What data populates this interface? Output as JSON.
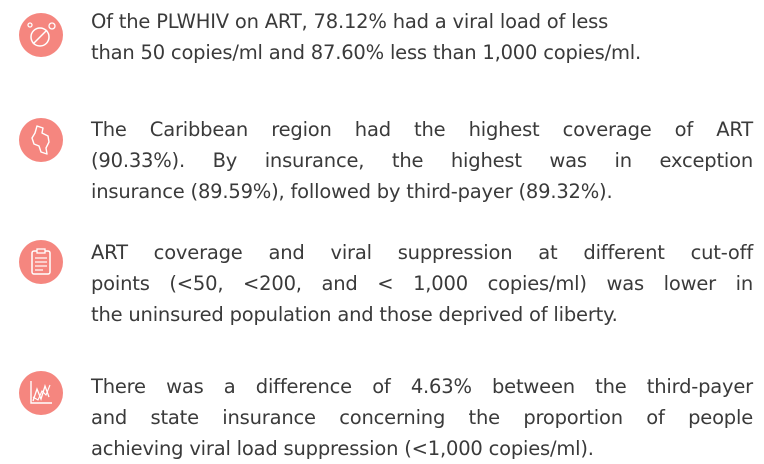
{
  "items": [
    {
      "lines": [
        "Of the PLWHIV on ART, 78.12% had a viral load of less",
        "than 50 copies/ml and 87.60% less than 1,000 copies/ml."
      ]
    },
    {
      "lines": [
        "The Caribbean region had the highest coverage of ART",
        "(90.33%). By insurance, the highest was in exception",
        "insurance (89.59%), followed by third-payer (89.32%)."
      ]
    },
    {
      "lines": [
        "ART coverage and viral suppression at different cut-off",
        "points (<50, <200, and < 1,000 copies/ml) was lower in",
        "the uninsured population and those deprived of liberty."
      ]
    },
    {
      "lines": [
        "There was a difference of 4.63% between the third-payer",
        "and state insurance concerning the proportion of people",
        "achieving viral load suppression (<1,000 copies/ml)."
      ]
    }
  ]
}
